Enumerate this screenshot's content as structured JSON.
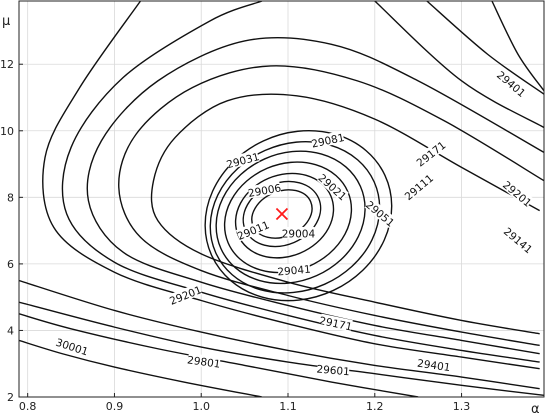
{
  "chart_data": {
    "type": "contour",
    "title": "",
    "xlabel": "α",
    "ylabel": "μ",
    "xlim": [
      0.79,
      1.395
    ],
    "ylim": [
      2,
      13.9
    ],
    "xticks": [
      "0.8",
      "0.9",
      "1.0",
      "1.1",
      "1.2",
      "1.3"
    ],
    "xtick_values": [
      0.8,
      0.9,
      1.0,
      1.1,
      1.2,
      1.3
    ],
    "yticks": [
      "2",
      "4",
      "6",
      "8",
      "10",
      "12"
    ],
    "ytick_values": [
      2,
      4,
      6,
      8,
      10,
      12
    ],
    "grid": true,
    "minimum": {
      "x": 1.093,
      "y": 7.5,
      "marker": "x",
      "color": "#ff1a1a"
    },
    "contour_levels": [
      29004,
      29006,
      29011,
      29021,
      29031,
      29041,
      29051,
      29081,
      29111,
      29141,
      29171,
      29201,
      29401,
      29601,
      29801,
      30001
    ],
    "contour_labels": [
      {
        "text": "29004",
        "x": 1.112,
        "y": 6.9,
        "angle": 0
      },
      {
        "text": "29006",
        "x": 1.073,
        "y": 8.2,
        "angle": -10
      },
      {
        "text": "29011",
        "x": 1.06,
        "y": 7.0,
        "angle": -22
      },
      {
        "text": "29021",
        "x": 1.151,
        "y": 8.3,
        "angle": 42
      },
      {
        "text": "29031",
        "x": 1.048,
        "y": 9.1,
        "angle": -15
      },
      {
        "text": "29041",
        "x": 1.107,
        "y": 5.8,
        "angle": -5
      },
      {
        "text": "29051",
        "x": 1.206,
        "y": 7.5,
        "angle": 40
      },
      {
        "text": "29081",
        "x": 1.146,
        "y": 9.7,
        "angle": -12
      },
      {
        "text": "29111",
        "x": 1.251,
        "y": 8.3,
        "angle": -40
      },
      {
        "text": "29141",
        "x": 1.365,
        "y": 6.7,
        "angle": 40
      },
      {
        "text": "29171",
        "x": 1.265,
        "y": 9.3,
        "angle": -38
      },
      {
        "text": "29171",
        "x": 1.155,
        "y": 4.2,
        "angle": 12
      },
      {
        "text": "29201",
        "x": 1.364,
        "y": 8.1,
        "angle": 40
      },
      {
        "text": "29201",
        "x": 0.982,
        "y": 5.05,
        "angle": -22
      },
      {
        "text": "29401",
        "x": 1.357,
        "y": 11.4,
        "angle": 40
      },
      {
        "text": "29401",
        "x": 1.268,
        "y": 2.95,
        "angle": 8
      },
      {
        "text": "29601",
        "x": 1.152,
        "y": 2.8,
        "angle": 5
      },
      {
        "text": "29801",
        "x": 1.003,
        "y": 3.05,
        "angle": 8
      },
      {
        "text": "30001",
        "x": 0.851,
        "y": 3.5,
        "angle": 18
      }
    ],
    "closed_contours": [
      {
        "level": 29004,
        "cx": 1.093,
        "cy": 7.5,
        "rx": 0.036,
        "ry": 0.68,
        "angle": -23
      },
      {
        "level": 29006,
        "cx": 1.093,
        "cy": 7.5,
        "rx": 0.046,
        "ry": 0.93,
        "angle": -23
      },
      {
        "level": 29011,
        "cx": 1.096,
        "cy": 7.45,
        "rx": 0.058,
        "ry": 1.22,
        "angle": -23
      },
      {
        "level": 29021,
        "cx": 1.1,
        "cy": 7.4,
        "rx": 0.075,
        "ry": 1.6,
        "angle": -23
      },
      {
        "level": 29031,
        "cx": 1.103,
        "cy": 7.4,
        "rx": 0.088,
        "ry": 1.92,
        "angle": -24
      },
      {
        "level": 29041,
        "cx": 1.108,
        "cy": 7.4,
        "rx": 0.1,
        "ry": 2.2,
        "angle": -24
      },
      {
        "level": 29051,
        "cx": 1.112,
        "cy": 7.45,
        "rx": 0.11,
        "ry": 2.48,
        "angle": -25
      }
    ],
    "open_contours": [
      {
        "level": 29081,
        "points": [
          [
            1.39,
            3.9
          ],
          [
            1.3,
            4.3
          ],
          [
            1.2,
            4.85
          ],
          [
            1.1,
            5.45
          ],
          [
            1.0,
            6.3
          ],
          [
            0.95,
            7.3
          ],
          [
            0.945,
            8.5
          ],
          [
            0.97,
            9.8
          ],
          [
            1.03,
            10.9
          ],
          [
            1.11,
            11.05
          ],
          [
            1.2,
            10.35
          ],
          [
            1.3,
            8.9
          ],
          [
            1.39,
            7.6
          ]
        ]
      },
      {
        "level": 29111,
        "points": [
          [
            1.39,
            3.55
          ],
          [
            1.3,
            3.95
          ],
          [
            1.2,
            4.45
          ],
          [
            1.1,
            5.05
          ],
          [
            1.0,
            5.8
          ],
          [
            0.93,
            6.8
          ],
          [
            0.905,
            8.3
          ],
          [
            0.925,
            9.9
          ],
          [
            0.99,
            11.3
          ],
          [
            1.08,
            11.95
          ],
          [
            1.18,
            11.5
          ],
          [
            1.28,
            10.3
          ],
          [
            1.395,
            8.5
          ]
        ]
      },
      {
        "level": 29141,
        "points": [
          [
            1.39,
            3.3
          ],
          [
            1.3,
            3.7
          ],
          [
            1.2,
            4.15
          ],
          [
            1.1,
            4.75
          ],
          [
            1.0,
            5.45
          ],
          [
            0.91,
            6.35
          ],
          [
            0.87,
            7.9
          ],
          [
            0.885,
            9.7
          ],
          [
            0.95,
            11.5
          ],
          [
            1.05,
            12.7
          ],
          [
            1.15,
            12.6
          ],
          [
            1.25,
            11.5
          ],
          [
            1.395,
            9.35
          ]
        ]
      },
      {
        "level": 29171,
        "points": [
          [
            1.39,
            3.05
          ],
          [
            1.3,
            3.4
          ],
          [
            1.2,
            3.85
          ],
          [
            1.1,
            4.45
          ],
          [
            1.0,
            5.15
          ],
          [
            0.9,
            6.05
          ],
          [
            0.845,
            7.5
          ],
          [
            0.85,
            9.5
          ],
          [
            0.91,
            11.6
          ],
          [
            1.01,
            13.3
          ],
          [
            1.07,
            13.9
          ]
        ]
      },
      {
        "level": 29171,
        "points": [
          [
            1.2,
            13.9
          ],
          [
            1.3,
            11.5
          ],
          [
            1.395,
            10.1
          ]
        ]
      },
      {
        "level": 29201,
        "points": [
          [
            1.39,
            2.85
          ],
          [
            1.3,
            3.2
          ],
          [
            1.2,
            3.6
          ],
          [
            1.1,
            4.2
          ],
          [
            1.0,
            4.9
          ],
          [
            0.9,
            5.75
          ],
          [
            0.83,
            7.1
          ],
          [
            0.82,
            9.2
          ],
          [
            0.86,
            11.3
          ],
          [
            0.93,
            13.9
          ]
        ]
      },
      {
        "level": 29201,
        "points": [
          [
            1.26,
            13.9
          ],
          [
            1.33,
            12.3
          ],
          [
            1.395,
            11.1
          ]
        ]
      },
      {
        "level": 29401,
        "points": [
          [
            1.39,
            2.25
          ],
          [
            1.3,
            2.6
          ],
          [
            1.2,
            2.95
          ],
          [
            1.1,
            3.4
          ],
          [
            1.0,
            3.95
          ],
          [
            0.9,
            4.6
          ],
          [
            0.79,
            5.5
          ]
        ]
      },
      {
        "level": 29401,
        "points": [
          [
            1.335,
            13.9
          ],
          [
            1.365,
            12.3
          ],
          [
            1.395,
            11.2
          ]
        ]
      },
      {
        "level": 29601,
        "points": [
          [
            1.395,
            2.05
          ],
          [
            1.3,
            2.35
          ],
          [
            1.2,
            2.7
          ],
          [
            1.1,
            3.05
          ],
          [
            1.0,
            3.5
          ],
          [
            0.9,
            4.1
          ],
          [
            0.79,
            4.85
          ]
        ]
      },
      {
        "level": 29801,
        "points": [
          [
            1.25,
            2.0
          ],
          [
            1.15,
            2.45
          ],
          [
            1.05,
            2.95
          ],
          [
            0.95,
            3.45
          ],
          [
            0.85,
            4.05
          ],
          [
            0.79,
            4.5
          ]
        ]
      },
      {
        "level": 30001,
        "points": [
          [
            1.07,
            2.0
          ],
          [
            0.98,
            2.45
          ],
          [
            0.9,
            2.9
          ],
          [
            0.84,
            3.3
          ],
          [
            0.79,
            3.7
          ]
        ]
      }
    ]
  }
}
